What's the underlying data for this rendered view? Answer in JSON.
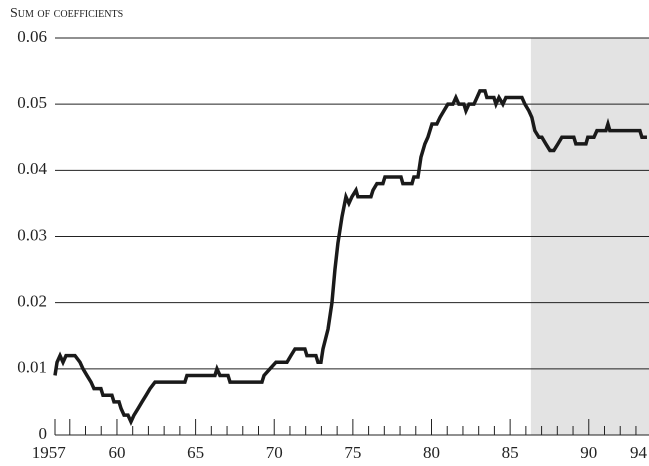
{
  "chart_data": {
    "type": "line",
    "y_label": "Sum of coefficients",
    "xlim": [
      1956.06,
      1993.83
    ],
    "ylim": [
      0,
      0.06
    ],
    "yticks": [
      0,
      0.01,
      0.02,
      0.03,
      0.04,
      0.05,
      0.06
    ],
    "xticks": [
      1957,
      {
        "value": 1960,
        "label": "60"
      },
      {
        "value": 1965,
        "label": "65"
      },
      {
        "value": 1970,
        "label": "70"
      },
      {
        "value": 1975,
        "label": "75"
      },
      {
        "value": 1980,
        "label": "80"
      },
      {
        "value": 1985,
        "label": "85"
      },
      {
        "value": 1990,
        "label": "90"
      },
      {
        "value": 1994,
        "label": "94"
      }
    ],
    "xminorticks": [
      1958,
      1959,
      1961,
      1962,
      1963,
      1964,
      1966,
      1967,
      1968,
      1969,
      1971,
      1972,
      1973,
      1974,
      1976,
      1977,
      1978,
      1979,
      1981,
      1982,
      1983,
      1984,
      1986,
      1987,
      1988,
      1989,
      1991,
      1992,
      1993
    ],
    "grid": true,
    "shade": [
      1986.32,
      1993.83
    ],
    "shade_color": "#e3e3e3",
    "series": [
      {
        "color": "#1a1a1a",
        "x": [
          1956.06,
          1956.19,
          1956.38,
          1956.57,
          1956.76,
          1957.33,
          1957.65,
          1957.84,
          1958.09,
          1958.35,
          1958.54,
          1958.98,
          1959.11,
          1959.68,
          1959.81,
          1960.13,
          1960.26,
          1960.45,
          1960.7,
          1960.89,
          1961.08,
          1961.34,
          1961.59,
          1961.85,
          1962.1,
          1962.42,
          1964.32,
          1964.45,
          1966.23,
          1966.36,
          1966.55,
          1967.06,
          1967.19,
          1969.22,
          1969.35,
          1969.73,
          1970.11,
          1970.81,
          1971.06,
          1971.32,
          1971.95,
          1972.08,
          1972.65,
          1972.78,
          1972.97,
          1973.1,
          1973.42,
          1973.67,
          1973.86,
          1974.05,
          1974.31,
          1974.56,
          1974.75,
          1974.94,
          1975.2,
          1975.32,
          1976.15,
          1976.28,
          1976.53,
          1976.91,
          1977.04,
          1978.06,
          1978.18,
          1978.76,
          1978.88,
          1979.14,
          1979.33,
          1979.58,
          1979.77,
          1980.03,
          1980.34,
          1980.54,
          1980.79,
          1981.04,
          1981.36,
          1981.55,
          1981.74,
          1982.06,
          1982.19,
          1982.38,
          1982.7,
          1982.89,
          1983.08,
          1983.4,
          1983.52,
          1983.97,
          1984.1,
          1984.29,
          1984.54,
          1984.73,
          1985.75,
          1985.94,
          1986.19,
          1986.38,
          1986.57,
          1986.83,
          1987.02,
          1987.27,
          1987.53,
          1987.78,
          1988.04,
          1988.29,
          1989.05,
          1989.18,
          1989.82,
          1989.94,
          1990.33,
          1990.52,
          1991.09,
          1991.22,
          1991.34,
          1993.25,
          1993.38,
          1993.7
        ],
        "values": [
          0.009,
          0.011,
          0.012,
          0.011,
          0.012,
          0.012,
          0.011,
          0.01,
          0.009,
          0.008,
          0.007,
          0.007,
          0.006,
          0.006,
          0.005,
          0.005,
          0.004,
          0.003,
          0.003,
          0.002,
          0.003,
          0.004,
          0.005,
          0.006,
          0.007,
          0.008,
          0.008,
          0.009,
          0.009,
          0.01,
          0.009,
          0.009,
          0.008,
          0.008,
          0.009,
          0.01,
          0.011,
          0.011,
          0.012,
          0.013,
          0.013,
          0.012,
          0.012,
          0.011,
          0.011,
          0.013,
          0.016,
          0.02,
          0.025,
          0.029,
          0.033,
          0.036,
          0.035,
          0.036,
          0.037,
          0.036,
          0.036,
          0.037,
          0.038,
          0.038,
          0.039,
          0.039,
          0.038,
          0.038,
          0.039,
          0.039,
          0.042,
          0.044,
          0.045,
          0.047,
          0.047,
          0.048,
          0.049,
          0.05,
          0.05,
          0.051,
          0.05,
          0.05,
          0.049,
          0.05,
          0.05,
          0.051,
          0.052,
          0.052,
          0.051,
          0.051,
          0.05,
          0.051,
          0.05,
          0.051,
          0.051,
          0.05,
          0.049,
          0.048,
          0.046,
          0.045,
          0.045,
          0.044,
          0.043,
          0.043,
          0.044,
          0.045,
          0.045,
          0.044,
          0.044,
          0.045,
          0.045,
          0.046,
          0.046,
          0.047,
          0.046,
          0.046,
          0.045,
          0.045
        ]
      }
    ]
  }
}
